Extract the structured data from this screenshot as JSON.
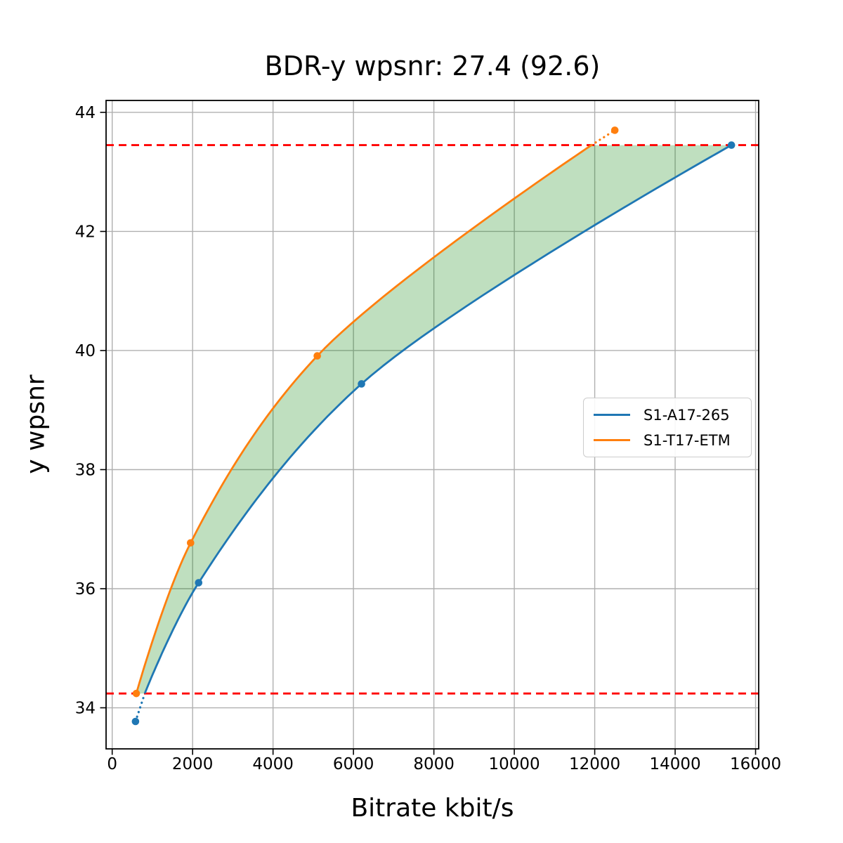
{
  "chart_data": {
    "type": "line",
    "title": "BDR-y wpsnr: 27.4 (92.6)",
    "xlabel": "Bitrate kbit/s",
    "ylabel": "y wpsnr",
    "xlim": [
      -152,
      16078
    ],
    "ylim": [
      33.31,
      44.2
    ],
    "x_ticks": [
      0,
      2000,
      4000,
      6000,
      8000,
      10000,
      12000,
      14000,
      16000
    ],
    "y_ticks": [
      34,
      36,
      38,
      40,
      42,
      44
    ],
    "grid": true,
    "grid_color": "#b0b0b0",
    "spine_color": "#000000",
    "legend_position": "middle-right",
    "series": [
      {
        "name": "S1-A17-265",
        "color": "#1f77b4",
        "points": [
          [
            580,
            33.77
          ],
          [
            2150,
            36.1
          ],
          [
            6200,
            39.44
          ],
          [
            15400,
            43.45
          ]
        ],
        "overlap_boundary_point": [
          810,
          34.24
        ],
        "dotted_segment": "below-overlap"
      },
      {
        "name": "S1-T17-ETM",
        "color": "#ff7f0e",
        "points": [
          [
            600,
            34.24
          ],
          [
            1950,
            36.77
          ],
          [
            5100,
            39.91
          ],
          [
            12500,
            43.7
          ]
        ],
        "overlap_boundary_point": [
          11920,
          43.45
        ],
        "dotted_segment": "above-overlap"
      }
    ],
    "overlap_limit_lines": {
      "low": 34.24,
      "high": 43.45,
      "color": "#ff0000",
      "style": "dashed"
    },
    "shaded_region": {
      "between": [
        "S1-T17-ETM",
        "S1-A17-265"
      ],
      "color": "#008000",
      "opacity": 0.25
    }
  }
}
